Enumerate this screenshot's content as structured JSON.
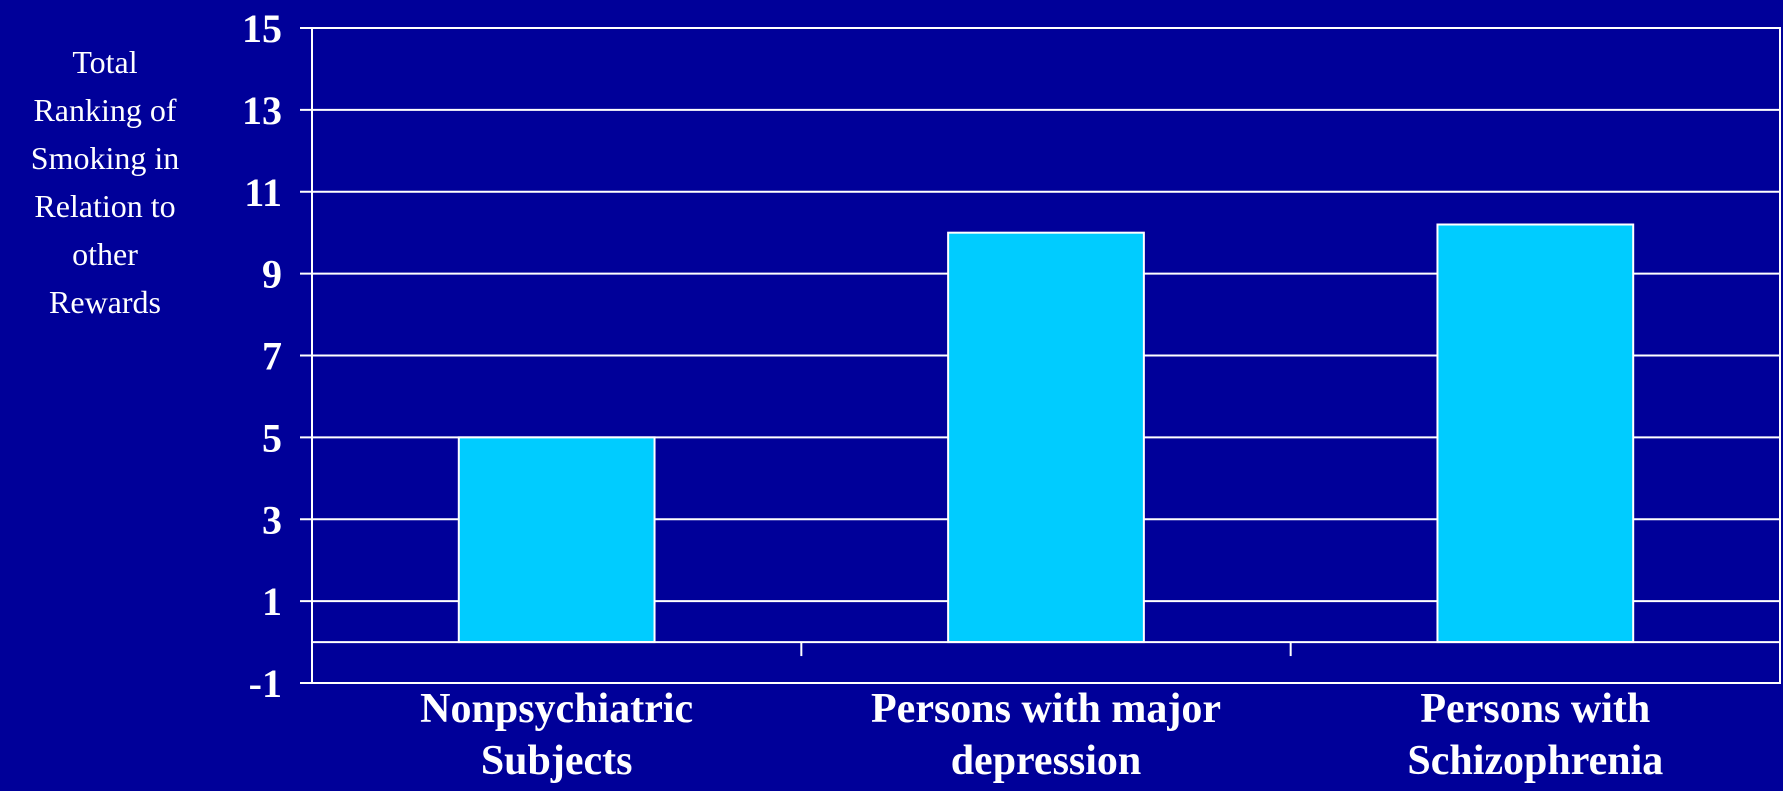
{
  "chart_data": {
    "type": "bar",
    "title": "",
    "ylabel_lines": [
      "Total",
      "Ranking of",
      "Smoking in",
      "Relation to",
      "other",
      "Rewards"
    ],
    "categories": [
      [
        "Nonpsychiatric",
        "Subjects"
      ],
      [
        "Persons with major",
        "depression"
      ],
      [
        "Persons with",
        "Schizophrenia"
      ]
    ],
    "values": [
      5,
      10,
      10.2
    ],
    "ylim": [
      -1,
      15
    ],
    "yticks": [
      "15",
      "13",
      "11",
      "9",
      "7",
      "5",
      "3",
      "1",
      "-1"
    ],
    "grid": true,
    "legend": "none",
    "colors": {
      "background": "#000099",
      "bar": "#00ccff",
      "bar_edge": "#ffffff",
      "grid": "#ffffff",
      "text": "#ffffff"
    }
  }
}
